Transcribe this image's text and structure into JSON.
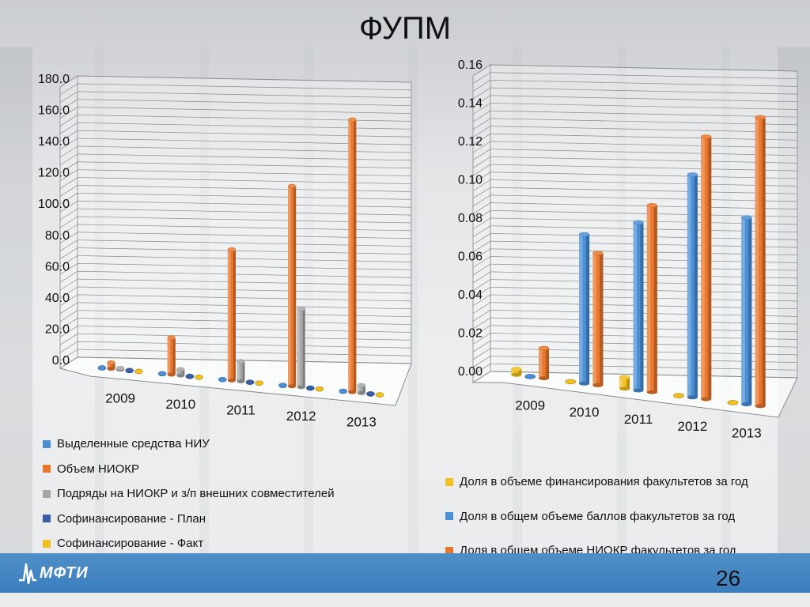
{
  "slide": {
    "title": "ФУПМ",
    "page_number": "26",
    "logo_text": "МФТИ"
  },
  "chart_data": [
    {
      "type": "bar",
      "style": "3d-cylinder",
      "categories": [
        "2009",
        "2010",
        "2011",
        "2012",
        "2013"
      ],
      "ylim": [
        0,
        180
      ],
      "yticks": [
        "0.0",
        "20.0",
        "40.0",
        "60.0",
        "80.0",
        "100.0",
        "120.0",
        "140.0",
        "160.0",
        "180.0"
      ],
      "series": [
        {
          "name": "Выделенные средства НИУ",
          "color": "#4a8fd6",
          "values": [
            0,
            0,
            0,
            0,
            0
          ]
        },
        {
          "name": "Объем НИОКР",
          "color": "#e8762c",
          "values": [
            4,
            24,
            85,
            130,
            177
          ]
        },
        {
          "name": "Подряды на НИОКР и з/п внешних совместителей",
          "color": "#a6a6a6",
          "values": [
            1,
            4,
            13,
            51,
            5
          ]
        },
        {
          "name": "Софинансирование - План",
          "color": "#3a5fa8",
          "values": [
            0,
            0,
            0,
            0,
            0
          ]
        },
        {
          "name": "Софинансирование - Факт",
          "color": "#f2c01e",
          "values": [
            0,
            0,
            0,
            0,
            0
          ]
        }
      ],
      "legend": "bottom"
    },
    {
      "type": "bar",
      "style": "3d-cylinder",
      "categories": [
        "2009",
        "2010",
        "2011",
        "2012",
        "2013"
      ],
      "ylim": [
        0,
        0.16
      ],
      "yticks": [
        "0.00",
        "0.02",
        "0.04",
        "0.06",
        "0.08",
        "0.10",
        "0.12",
        "0.14",
        "0.16"
      ],
      "series": [
        {
          "name": "Доля в объеме финансирования факультетов за год",
          "color": "#f2c01e",
          "values": [
            0.003,
            0,
            0.006,
            0,
            0
          ]
        },
        {
          "name": "Доля в общем объеме баллов факультетов за год",
          "color": "#4a8fd6",
          "values": [
            0,
            0.079,
            0.089,
            0.118,
            0.099
          ]
        },
        {
          "name": "Доля в общем объеме НИОКР факультетов за год",
          "color": "#e8762c",
          "values": [
            0.016,
            0.07,
            0.099,
            0.139,
            0.153
          ]
        }
      ],
      "legend": "bottom"
    }
  ]
}
